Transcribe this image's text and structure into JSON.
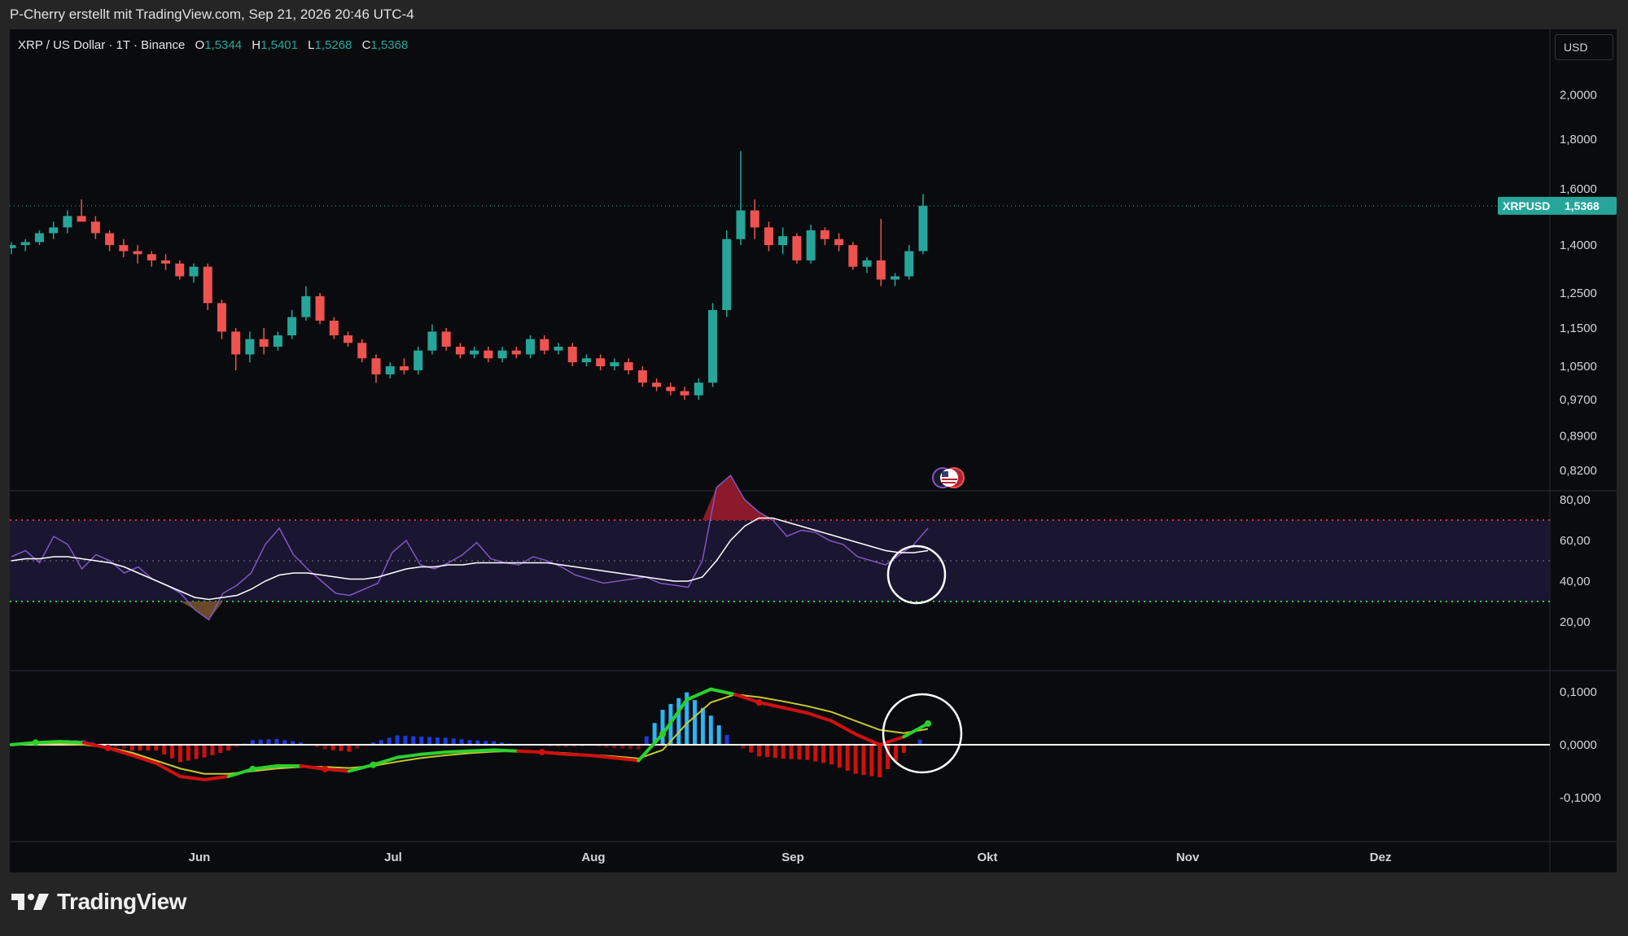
{
  "caption": "P-Cherry erstellt mit TradingView.com, Sep 21, 2026 20:46 UTC-4",
  "header": {
    "symbol": "XRP / US Dollar · 1T · Binance",
    "open_label": "O",
    "open": "1,5344",
    "high_label": "H",
    "high": "1,5401",
    "low_label": "L",
    "low": "1,5268",
    "close_label": "C",
    "close": "1,5368"
  },
  "currency": "USD",
  "last_price_badge": {
    "symbol": "XRPUSD",
    "price": "1,5368"
  },
  "brand": "TradingView",
  "icons": [
    "tradingview-logo-icon",
    "us-flag-event-icon"
  ],
  "colors": {
    "up": "#26a69a",
    "down": "#ef5350",
    "rsi": "#7e57c2",
    "rsi_ma": "#ffffff",
    "macd_up": "#2bd12b",
    "macd_down": "#d01010",
    "signal": "#c8c832"
  },
  "chart_data": [
    {
      "type": "candlestick",
      "title": "XRP / US Dollar · 1T · Binance",
      "y_scale": "log",
      "y_ticks": [
        "2,0000",
        "1,8000",
        "1,6000",
        "1,4000",
        "1,2500",
        "1,1500",
        "1,0500",
        "0,9700",
        "0,8900",
        "0,8200"
      ],
      "x_ticks": [
        "Jun",
        "Jul",
        "Aug",
        "Sep",
        "Okt",
        "Nov",
        "Dez"
      ],
      "ohlc_approx": [
        [
          1.39,
          1.41,
          1.37,
          1.4
        ],
        [
          1.4,
          1.42,
          1.38,
          1.41
        ],
        [
          1.41,
          1.45,
          1.4,
          1.44
        ],
        [
          1.44,
          1.48,
          1.42,
          1.46
        ],
        [
          1.46,
          1.52,
          1.44,
          1.5
        ],
        [
          1.5,
          1.56,
          1.48,
          1.48
        ],
        [
          1.48,
          1.5,
          1.42,
          1.44
        ],
        [
          1.44,
          1.45,
          1.38,
          1.4
        ],
        [
          1.4,
          1.42,
          1.36,
          1.38
        ],
        [
          1.38,
          1.4,
          1.34,
          1.37
        ],
        [
          1.37,
          1.38,
          1.33,
          1.35
        ],
        [
          1.35,
          1.37,
          1.32,
          1.34
        ],
        [
          1.34,
          1.35,
          1.29,
          1.3
        ],
        [
          1.3,
          1.34,
          1.28,
          1.33
        ],
        [
          1.33,
          1.34,
          1.2,
          1.22
        ],
        [
          1.22,
          1.23,
          1.12,
          1.14
        ],
        [
          1.14,
          1.15,
          1.04,
          1.08
        ],
        [
          1.08,
          1.14,
          1.06,
          1.12
        ],
        [
          1.12,
          1.15,
          1.08,
          1.1
        ],
        [
          1.1,
          1.14,
          1.09,
          1.13
        ],
        [
          1.13,
          1.2,
          1.12,
          1.18
        ],
        [
          1.18,
          1.27,
          1.17,
          1.24
        ],
        [
          1.24,
          1.25,
          1.16,
          1.17
        ],
        [
          1.17,
          1.18,
          1.12,
          1.13
        ],
        [
          1.13,
          1.14,
          1.1,
          1.11
        ],
        [
          1.11,
          1.12,
          1.06,
          1.07
        ],
        [
          1.07,
          1.08,
          1.01,
          1.03
        ],
        [
          1.03,
          1.06,
          1.02,
          1.05
        ],
        [
          1.05,
          1.07,
          1.03,
          1.04
        ],
        [
          1.04,
          1.1,
          1.03,
          1.09
        ],
        [
          1.09,
          1.16,
          1.08,
          1.14
        ],
        [
          1.14,
          1.15,
          1.09,
          1.1
        ],
        [
          1.1,
          1.11,
          1.07,
          1.08
        ],
        [
          1.08,
          1.1,
          1.07,
          1.09
        ],
        [
          1.09,
          1.1,
          1.06,
          1.07
        ],
        [
          1.07,
          1.1,
          1.06,
          1.09
        ],
        [
          1.09,
          1.1,
          1.07,
          1.08
        ],
        [
          1.08,
          1.13,
          1.07,
          1.12
        ],
        [
          1.12,
          1.13,
          1.08,
          1.09
        ],
        [
          1.09,
          1.11,
          1.08,
          1.1
        ],
        [
          1.1,
          1.11,
          1.05,
          1.06
        ],
        [
          1.06,
          1.08,
          1.05,
          1.07
        ],
        [
          1.07,
          1.08,
          1.04,
          1.05
        ],
        [
          1.05,
          1.07,
          1.04,
          1.06
        ],
        [
          1.06,
          1.07,
          1.03,
          1.04
        ],
        [
          1.04,
          1.05,
          1.0,
          1.01
        ],
        [
          1.01,
          1.02,
          0.99,
          1.0
        ],
        [
          1.0,
          1.01,
          0.98,
          0.99
        ],
        [
          0.99,
          1.0,
          0.97,
          0.98
        ],
        [
          0.98,
          1.02,
          0.97,
          1.01
        ],
        [
          1.01,
          1.22,
          1.0,
          1.2
        ],
        [
          1.2,
          1.45,
          1.18,
          1.42
        ],
        [
          1.42,
          1.75,
          1.4,
          1.52
        ],
        [
          1.52,
          1.56,
          1.42,
          1.46
        ],
        [
          1.46,
          1.48,
          1.38,
          1.4
        ],
        [
          1.4,
          1.46,
          1.37,
          1.43
        ],
        [
          1.43,
          1.44,
          1.34,
          1.35
        ],
        [
          1.35,
          1.47,
          1.34,
          1.45
        ],
        [
          1.45,
          1.46,
          1.4,
          1.42
        ],
        [
          1.42,
          1.44,
          1.38,
          1.4
        ],
        [
          1.4,
          1.41,
          1.32,
          1.33
        ],
        [
          1.33,
          1.36,
          1.31,
          1.35
        ],
        [
          1.35,
          1.49,
          1.27,
          1.29
        ],
        [
          1.29,
          1.31,
          1.27,
          1.3
        ],
        [
          1.3,
          1.4,
          1.29,
          1.38
        ],
        [
          1.38,
          1.58,
          1.37,
          1.5368
        ]
      ]
    },
    {
      "type": "line",
      "title": "RSI",
      "y_ticks": [
        "80,00",
        "60,00",
        "40,00",
        "20,00"
      ],
      "bands": {
        "upper": 70,
        "middle": 50,
        "lower": 30
      },
      "series": [
        {
          "values": [
            52,
            55,
            49,
            62,
            58,
            46,
            53,
            50,
            44,
            47,
            41,
            38,
            34,
            26,
            21,
            34,
            38,
            44,
            58,
            66,
            53,
            46,
            40,
            34,
            33,
            36,
            39,
            54,
            60,
            48,
            46,
            49,
            53,
            59,
            51,
            49,
            48,
            52,
            50,
            47,
            43,
            41,
            39,
            40,
            41,
            42,
            39,
            38,
            37,
            50,
            86,
            92,
            80,
            74,
            70,
            62,
            65,
            64,
            60,
            58,
            52,
            50,
            48,
            53,
            58,
            66
          ]
        },
        {
          "values": [
            50,
            51,
            51,
            52,
            52,
            51,
            50,
            49,
            47,
            44,
            41,
            38,
            35,
            32,
            31,
            32,
            33,
            36,
            40,
            43,
            44,
            44,
            43,
            42,
            41,
            41,
            42,
            44,
            46,
            47,
            47,
            48,
            48,
            49,
            49,
            49,
            49,
            49,
            49,
            48,
            47,
            46,
            45,
            44,
            43,
            42,
            41,
            40,
            40,
            42,
            50,
            60,
            67,
            71,
            71,
            69,
            67,
            65,
            63,
            61,
            59,
            57,
            55,
            54,
            54,
            55
          ]
        }
      ]
    },
    {
      "type": "line",
      "title": "MACD",
      "y_ticks": [
        "0,1000",
        "0,0000",
        "-0,1000"
      ],
      "series": [
        {
          "values": [
            0.0,
            0.004,
            0.006,
            0.004,
            -0.006,
            -0.02,
            -0.035,
            -0.06,
            -0.066,
            -0.06,
            -0.046,
            -0.04,
            -0.04,
            -0.046,
            -0.05,
            -0.038,
            -0.024,
            -0.018,
            -0.014,
            -0.012,
            -0.01,
            -0.012,
            -0.014,
            -0.018,
            -0.02,
            -0.025,
            -0.03,
            0.02,
            0.085,
            0.105,
            0.095,
            0.08,
            0.07,
            0.06,
            0.045,
            0.02,
            0.0,
            0.015,
            0.04
          ]
        },
        {
          "values": [
            0.0,
            0.001,
            0.002,
            0.0,
            -0.005,
            -0.015,
            -0.03,
            -0.045,
            -0.055,
            -0.055,
            -0.05,
            -0.045,
            -0.042,
            -0.042,
            -0.044,
            -0.04,
            -0.032,
            -0.025,
            -0.02,
            -0.016,
            -0.013,
            -0.012,
            -0.013,
            -0.016,
            -0.019,
            -0.022,
            -0.026,
            -0.01,
            0.04,
            0.08,
            0.095,
            0.09,
            0.082,
            0.073,
            0.062,
            0.045,
            0.028,
            0.022,
            0.03
          ]
        }
      ]
    }
  ]
}
